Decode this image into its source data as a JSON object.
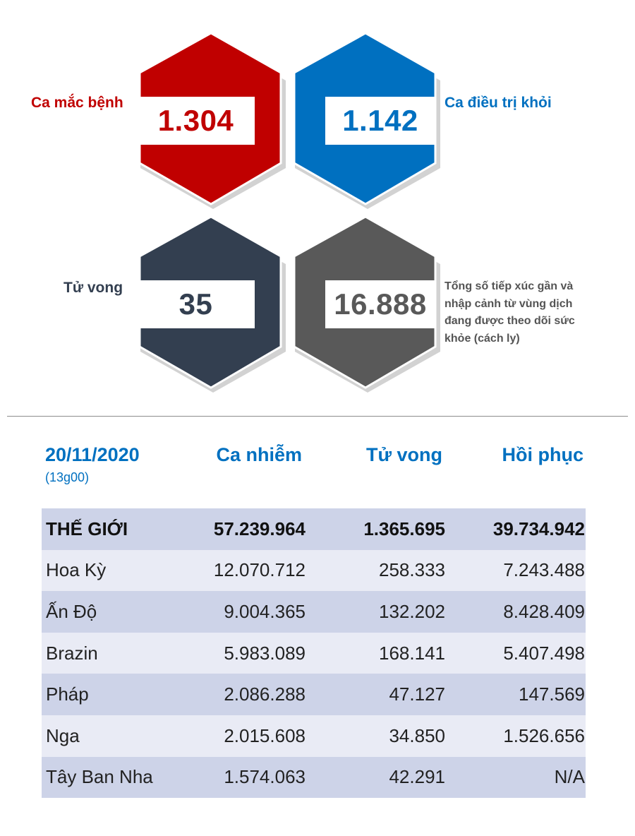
{
  "stats": {
    "cases": {
      "label": "Ca mắc bệnh",
      "value": "1.304",
      "color": "#c00000"
    },
    "recovered": {
      "label": "Ca điều trị khỏi",
      "value": "1.142",
      "color": "#0070c0"
    },
    "deaths": {
      "label": "Tử vong",
      "value": "35",
      "color": "#333f50"
    },
    "monitored": {
      "label": "Tổng số tiếp xúc gần và nhập cảnh từ vùng dịch đang được theo dõi sức khỏe (cách ly)",
      "value": "16.888",
      "color": "#595959"
    }
  },
  "table": {
    "date": "20/11/2020",
    "time": "(13g00)",
    "headers": [
      "Ca nhiễm",
      "Tử vong",
      "Hồi phục"
    ],
    "rows": [
      [
        "THẾ GIỚI",
        "57.239.964",
        "1.365.695",
        "39.734.942"
      ],
      [
        "Hoa Kỳ",
        "12.070.712",
        "258.333",
        "7.243.488"
      ],
      [
        "Ấn Độ",
        "9.004.365",
        "132.202",
        "8.428.409"
      ],
      [
        "Brazin",
        "5.983.089",
        "168.141",
        "5.407.498"
      ],
      [
        "Pháp",
        "2.086.288",
        "47.127",
        "147.569"
      ],
      [
        "Nga",
        "2.015.608",
        "34.850",
        "1.526.656"
      ],
      [
        "Tây Ban Nha",
        "1.574.063",
        "42.291",
        "N/A"
      ]
    ]
  }
}
